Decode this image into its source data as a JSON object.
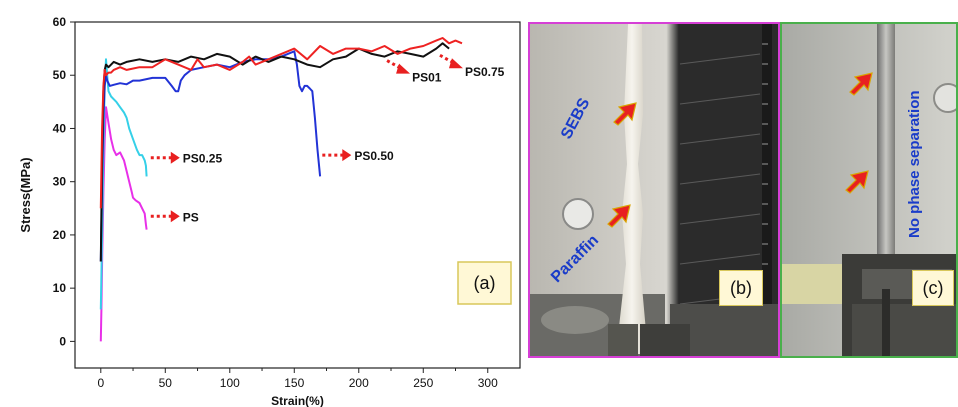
{
  "chart_data": {
    "type": "line",
    "xlabel": "Strain(%)",
    "ylabel": "Stress(MPa)",
    "xlim": [
      -20,
      325
    ],
    "ylim": [
      -5,
      60
    ],
    "xticks": [
      0,
      50,
      100,
      150,
      200,
      250,
      300
    ],
    "yticks": [
      0,
      10,
      20,
      30,
      40,
      50,
      60
    ],
    "grid": false,
    "series": [
      {
        "name": "PS",
        "color": "#e830e8",
        "x": [
          0,
          0.5,
          1,
          2,
          3,
          4,
          6,
          8,
          10,
          12,
          15,
          18,
          20,
          22,
          24,
          25,
          27,
          30,
          32,
          34,
          35,
          35.5
        ],
        "y": [
          0,
          6,
          15,
          28,
          38,
          44,
          41,
          38,
          36,
          35,
          35.5,
          34,
          32,
          30,
          28,
          27,
          26.5,
          26,
          25,
          24,
          22,
          21
        ]
      },
      {
        "name": "PS0.25",
        "color": "#35d0e8",
        "x": [
          0,
          1,
          2,
          3,
          4,
          5,
          6,
          8,
          10,
          12,
          15,
          18,
          20,
          22,
          25,
          28,
          30,
          32,
          34,
          35,
          35.5
        ],
        "y": [
          6,
          20,
          36,
          48,
          53,
          50,
          47,
          46,
          45.5,
          45,
          44,
          43,
          42,
          40,
          38,
          36,
          35,
          35,
          34,
          33,
          31
        ]
      },
      {
        "name": "PS0.50",
        "color": "#2233d6",
        "x": [
          0,
          1,
          2,
          3,
          4,
          5,
          7,
          10,
          15,
          20,
          25,
          30,
          40,
          50,
          55,
          58,
          60,
          62,
          65,
          70,
          80,
          90,
          100,
          110,
          120,
          130,
          140,
          145,
          150,
          152,
          154,
          156,
          158,
          160,
          162,
          164,
          166,
          168,
          170
        ],
        "y": [
          15,
          30,
          42,
          48,
          50,
          49,
          48,
          48.2,
          48.5,
          48.3,
          49,
          49,
          49.5,
          49.5,
          48,
          47,
          47,
          49,
          50,
          51,
          51.5,
          52,
          51.5,
          52.5,
          53,
          53,
          53.5,
          54,
          54.5,
          52,
          48,
          47,
          48,
          48,
          47.5,
          47,
          42,
          36,
          31
        ]
      },
      {
        "name": "PS01",
        "color": "#111111",
        "x": [
          0,
          1,
          2,
          3,
          4,
          6,
          8,
          10,
          15,
          20,
          30,
          40,
          50,
          60,
          70,
          80,
          90,
          100,
          110,
          120,
          130,
          140,
          150,
          160,
          170,
          180,
          190,
          200,
          210,
          220,
          230,
          240,
          250,
          260,
          265,
          270
        ],
        "y": [
          15,
          35,
          47,
          51,
          52,
          51.5,
          52,
          52.5,
          52,
          52.5,
          53,
          52.5,
          53,
          52.5,
          53.5,
          53,
          54,
          53.5,
          52,
          53.5,
          52.5,
          53.5,
          53,
          52,
          51.5,
          53,
          53.5,
          55,
          54,
          53.5,
          54.5,
          54,
          53.5,
          55,
          56,
          55
        ]
      },
      {
        "name": "PS0.75",
        "color": "#ee2222",
        "x": [
          0,
          1,
          2,
          3,
          4,
          6,
          8,
          10,
          15,
          20,
          30,
          40,
          50,
          60,
          70,
          75,
          80,
          90,
          100,
          110,
          115,
          120,
          130,
          140,
          150,
          160,
          170,
          180,
          190,
          200,
          210,
          220,
          230,
          240,
          250,
          260,
          265,
          270,
          275,
          280
        ],
        "y": [
          25,
          40,
          48,
          51,
          50,
          50.5,
          50.5,
          51,
          51.5,
          51,
          51.5,
          51.5,
          53,
          52,
          51,
          53,
          51.5,
          52,
          51,
          52.5,
          53.5,
          52,
          53,
          54,
          55,
          53,
          55.5,
          54,
          55,
          55,
          54.5,
          55.5,
          54,
          55,
          55.5,
          56.5,
          57,
          56,
          56.5,
          56
        ]
      }
    ],
    "annotations": [
      {
        "text": "PS",
        "x": 62,
        "y": 23.5
      },
      {
        "text": "PS0.25",
        "x": 62,
        "y": 34.5
      },
      {
        "text": "PS0.50",
        "x": 195,
        "y": 35
      },
      {
        "text": "PS01",
        "x": 239,
        "y": 50.5
      },
      {
        "text": "PS0.75",
        "x": 280,
        "y": 51.5
      }
    ]
  },
  "panels": {
    "a_label": "(a)",
    "b_label": "(b)",
    "c_label": "(c)",
    "b_callouts": [
      "SEBS",
      "Paraffin"
    ],
    "c_callouts": [
      "No phase separation"
    ]
  },
  "colors": {
    "arrow_red": "#e82020",
    "callout_blue": "#1a3cc9",
    "panel_b_border": "#d63fd6",
    "panel_c_border": "#49b04b"
  }
}
